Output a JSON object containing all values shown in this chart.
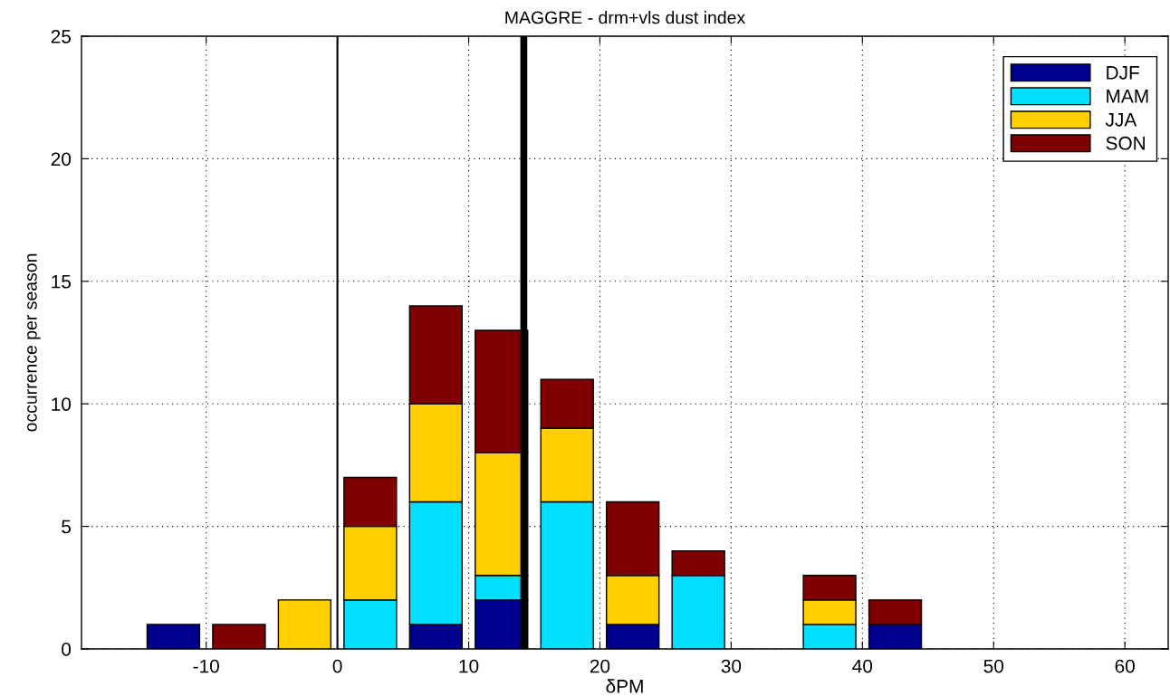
{
  "chart_data": {
    "type": "bar",
    "title": "MAGGRE - drm+vls dust index",
    "xlabel": "δPM",
    "ylabel": "occurrence per season",
    "x": [
      -12.5,
      -7.5,
      -2.5,
      2.5,
      7.5,
      12.5,
      17.5,
      22.5,
      27.5,
      37.5,
      42.5
    ],
    "stacked": true,
    "series": [
      {
        "name": "DJF",
        "color": "#00008f",
        "values": [
          1,
          null,
          null,
          null,
          1,
          2,
          null,
          1,
          null,
          null,
          1
        ]
      },
      {
        "name": "MAM",
        "color": "#00dfff",
        "values": [
          null,
          null,
          null,
          2,
          5,
          1,
          6,
          null,
          3,
          1,
          null
        ]
      },
      {
        "name": "JJA",
        "color": "#ffcf00",
        "values": [
          null,
          null,
          2,
          3,
          4,
          5,
          3,
          2,
          null,
          1,
          null
        ]
      },
      {
        "name": "SON",
        "color": "#7f0000",
        "values": [
          null,
          1,
          null,
          2,
          4,
          5,
          2,
          3,
          1,
          1,
          1
        ]
      }
    ],
    "xlim": [
      -19.5,
      63.3
    ],
    "xticks": [
      -10,
      0,
      10,
      20,
      30,
      40,
      50,
      60
    ],
    "ylim": [
      0,
      25
    ],
    "yticks": [
      0,
      5,
      10,
      15,
      20,
      25
    ],
    "ref_lines": [
      {
        "axis": "x",
        "value": 0,
        "color": "#000000"
      },
      {
        "axis": "x",
        "value": 14.2,
        "color": "#000000"
      }
    ],
    "grid": true,
    "legend": "top right"
  }
}
